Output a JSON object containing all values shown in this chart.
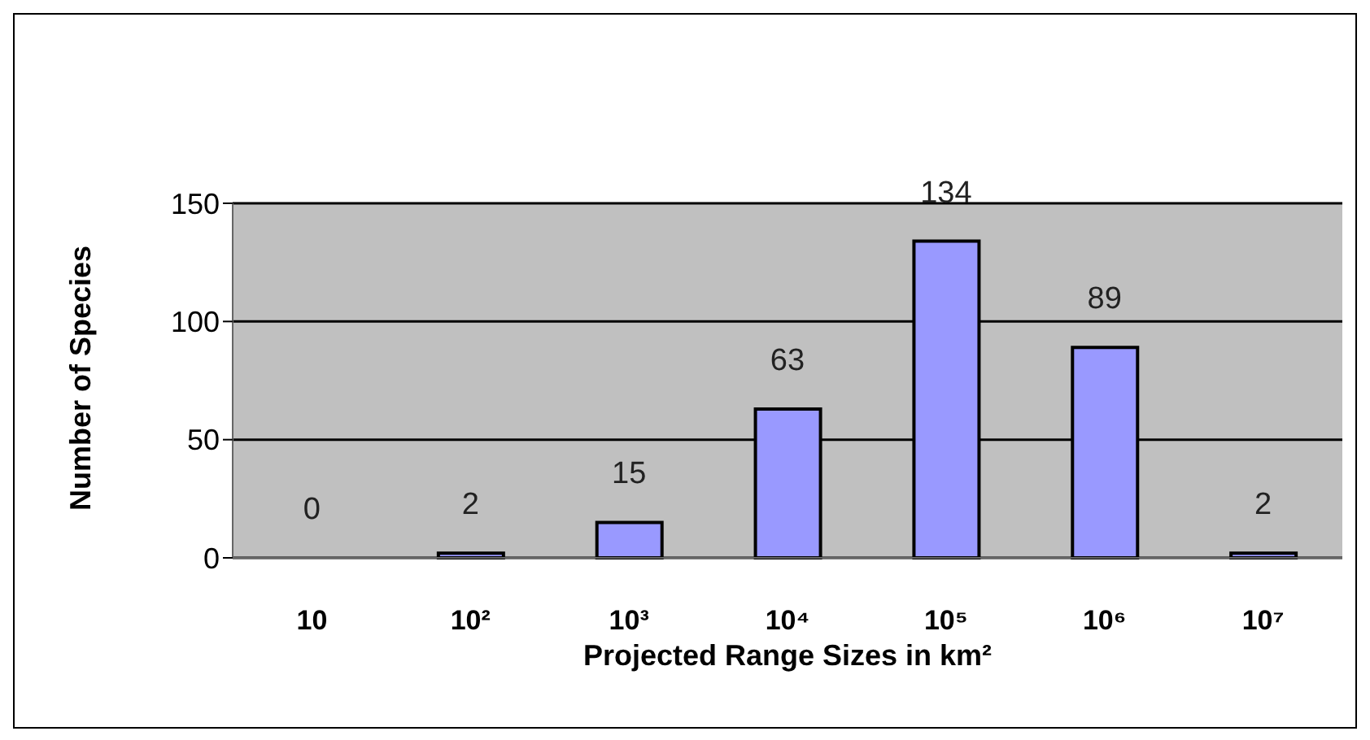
{
  "chart_data": {
    "type": "bar",
    "categories": [
      "10",
      "10²",
      "10³",
      "10⁴",
      "10⁵",
      "10⁶",
      "10⁷"
    ],
    "values": [
      0,
      2,
      15,
      63,
      134,
      89,
      2
    ],
    "color": "#9999ff",
    "xlabel": "Projected Range Sizes in km²",
    "ylabel": "Number of Species",
    "ylim": [
      0,
      150
    ],
    "yticks": [
      0,
      50,
      100,
      150
    ],
    "grid": "y",
    "legend": false,
    "data_labels": true
  }
}
